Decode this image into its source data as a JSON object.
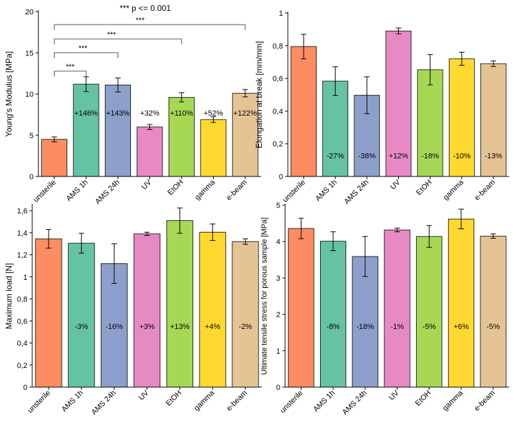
{
  "colors": [
    "#fc8d62",
    "#66c2a5",
    "#8da0cb",
    "#e78ac3",
    "#a6d854",
    "#ffd92f",
    "#e5c494"
  ],
  "chart_data": [
    {
      "type": "bar",
      "title": "",
      "ylabel": "Young's Modulus [MPa]",
      "categories": [
        "unsterile",
        "AMS 1h",
        "AMS 24h",
        "UV",
        "EtOH",
        "gamma",
        "e-beam"
      ],
      "values": [
        4.5,
        11.2,
        11.1,
        6.0,
        9.6,
        6.9,
        10.1
      ],
      "errors": [
        0.3,
        0.9,
        0.85,
        0.3,
        0.55,
        0.35,
        0.45
      ],
      "bar_labels": [
        "",
        "+146%",
        "+143%",
        "+32%",
        "+110%",
        "+52%",
        "+122%"
      ],
      "ylim": [
        0,
        20
      ],
      "yticks": [
        0,
        5,
        10,
        15,
        20
      ],
      "ytick_labels": [
        "0",
        "5",
        "10",
        "15",
        "20"
      ],
      "annotation": "*** p <= 0.001",
      "significance": [
        {
          "from": 0,
          "to": 1,
          "label": "***"
        },
        {
          "from": 0,
          "to": 2,
          "label": "***"
        },
        {
          "from": 0,
          "to": 4,
          "label": "***"
        },
        {
          "from": 0,
          "to": 6,
          "label": "***"
        }
      ]
    },
    {
      "type": "bar",
      "title": "",
      "ylabel": "Elongation at break [mm/mm]",
      "categories": [
        "unsterile",
        "AMS 1h",
        "AMS 24h",
        "UV",
        "EtOH",
        "gamma",
        "e-beam"
      ],
      "values": [
        0.795,
        0.583,
        0.497,
        0.89,
        0.653,
        0.72,
        0.69
      ],
      "errors": [
        0.075,
        0.088,
        0.113,
        0.018,
        0.093,
        0.04,
        0.017
      ],
      "bar_labels": [
        "",
        "-27%",
        "-38%",
        "+12%",
        "-18%",
        "-10%",
        "-13%"
      ],
      "ylim": [
        0,
        1
      ],
      "yticks": [
        0,
        0.2,
        0.4,
        0.6,
        0.8,
        1
      ],
      "ytick_labels": [
        "0",
        "0,2",
        "0,4",
        "0,6",
        "0,8",
        "1"
      ]
    },
    {
      "type": "bar",
      "title": "",
      "ylabel": "Maximum load [N]",
      "categories": [
        "unsterile",
        "AMS 1h",
        "AMS 24h",
        "UV",
        "EtOH",
        "gamma",
        "e-beam"
      ],
      "values": [
        1.345,
        1.305,
        1.12,
        1.39,
        1.51,
        1.405,
        1.32
      ],
      "errors": [
        0.085,
        0.09,
        0.18,
        0.015,
        0.115,
        0.075,
        0.025
      ],
      "bar_labels": [
        "",
        "-3%",
        "-16%",
        "+3%",
        "+13%",
        "+4%",
        "-2%"
      ],
      "ylim": [
        0,
        1.65
      ],
      "yticks": [
        0,
        0.2,
        0.4,
        0.6,
        0.8,
        1,
        1.2,
        1.4,
        1.6
      ],
      "ytick_labels": [
        "0",
        "0,2",
        "0,4",
        "0,6",
        "0,8",
        "1",
        "1,2",
        "1,4",
        "1,6"
      ]
    },
    {
      "type": "bar",
      "title": "",
      "ylabel": "Ultimate tensile stress for porous sample [MPa]",
      "categories": [
        "unsterile",
        "AMS 1h",
        "AMS 24h",
        "UV",
        "EtOH",
        "gamma",
        "e-beam"
      ],
      "values": [
        4.36,
        4.01,
        3.59,
        4.32,
        4.14,
        4.62,
        4.15
      ],
      "errors": [
        0.28,
        0.26,
        0.55,
        0.05,
        0.3,
        0.27,
        0.06
      ],
      "bar_labels": [
        "",
        "-8%",
        "-18%",
        "-1%",
        "-5%",
        "+6%",
        "-5%"
      ],
      "ylim": [
        0,
        5
      ],
      "yticks": [
        0,
        1,
        2,
        3,
        4,
        5
      ],
      "ytick_labels": [
        "0",
        "1",
        "2",
        "3",
        "4",
        "5"
      ]
    }
  ]
}
